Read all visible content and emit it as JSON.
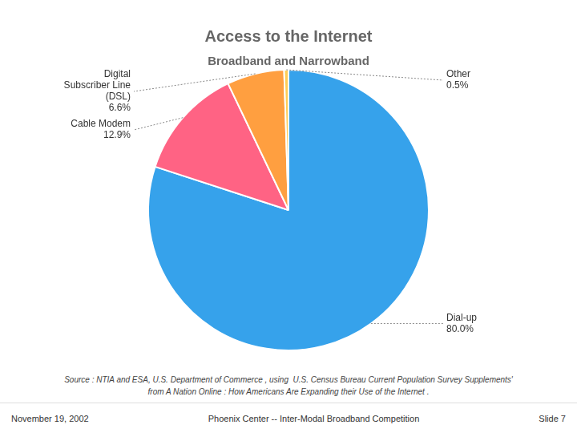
{
  "chart_data": {
    "type": "pie",
    "title": "Access to the Internet",
    "subtitle": "Broadband and Narrowband",
    "categories": [
      "Dial-up",
      "Cable Modem",
      "Digital\nSubscriber Line\n(DSL)",
      "Other"
    ],
    "values": [
      80.0,
      12.9,
      6.6,
      0.5
    ],
    "value_labels": [
      "80.0%",
      "12.9%",
      "6.6%",
      "0.5%"
    ],
    "data_labels": true,
    "annotations": [
      "Source : NTIA and ESA, U.S. Department of Commerce , using  U.S. Census Bureau Current Population Survey Supplements'",
      "from A Nation Online : How Americans Are Expanding their Use of the Internet .",
      "November 19, 2002",
      "Phoenix Center -- Inter-Modal Broadband Competition",
      "Slide 7"
    ]
  }
}
